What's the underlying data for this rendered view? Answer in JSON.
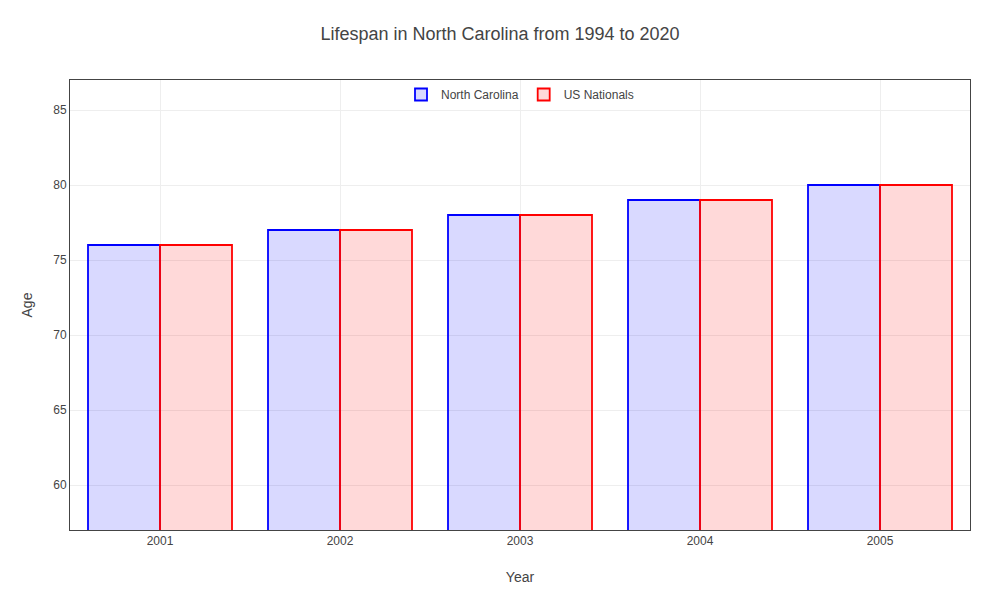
{
  "chart_data": {
    "type": "bar",
    "title": "Lifespan in North Carolina from 1994 to 2020",
    "xlabel": "Year",
    "ylabel": "Age",
    "categories": [
      "2001",
      "2002",
      "2003",
      "2004",
      "2005"
    ],
    "series": [
      {
        "name": "North Carolina",
        "color": "#0000ff",
        "values": [
          76,
          77,
          78,
          79,
          80
        ]
      },
      {
        "name": "US Nationals",
        "color": "#ff0000",
        "values": [
          76,
          77,
          78,
          79,
          80
        ]
      }
    ],
    "ylim": [
      57,
      87
    ],
    "yticks": [
      60,
      65,
      70,
      75,
      80,
      85
    ],
    "grid": true,
    "legend": "upper center"
  }
}
